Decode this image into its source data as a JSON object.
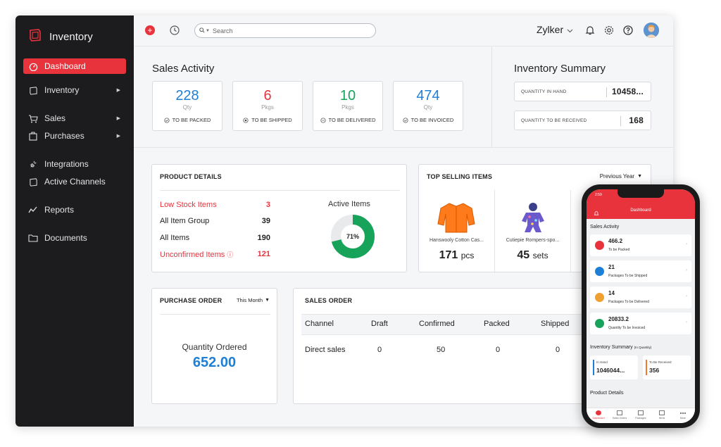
{
  "colors": {
    "accent": "#e8333d",
    "blue": "#1e7fd6",
    "green": "#17a35a",
    "sidebar": "#1c1c1e"
  },
  "sidebar": {
    "brand": "Inventory",
    "items": [
      {
        "label": "Dashboard",
        "icon": "dashboard-icon"
      },
      {
        "label": "Inventory",
        "icon": "inventory-icon"
      },
      {
        "label": "Sales",
        "icon": "cart-icon"
      },
      {
        "label": "Purchases",
        "icon": "bag-icon"
      },
      {
        "label": "Integrations",
        "icon": "plug-icon"
      },
      {
        "label": "Active Channels",
        "icon": "channels-icon"
      },
      {
        "label": "Reports",
        "icon": "reports-icon"
      },
      {
        "label": "Documents",
        "icon": "folder-icon"
      }
    ]
  },
  "header": {
    "search_placeholder": "Search",
    "org_name": "Zylker"
  },
  "sales_activity": {
    "title": "Sales Activity",
    "cards": [
      {
        "value": "228",
        "unit": "Qty",
        "label": "TO BE PACKED",
        "color": "#1e7fd6"
      },
      {
        "value": "6",
        "unit": "Pkgs",
        "label": "TO BE SHIPPED",
        "color": "#e8333d"
      },
      {
        "value": "10",
        "unit": "Pkgs",
        "label": "TO BE DELIVERED",
        "color": "#17a35a"
      },
      {
        "value": "474",
        "unit": "Qty",
        "label": "TO BE INVOICED",
        "color": "#1e7fd6"
      }
    ]
  },
  "inventory_summary": {
    "title": "Inventory Summary",
    "rows": [
      {
        "label": "QUANTITY IN HAND",
        "value": "10458..."
      },
      {
        "label": "QUANTITY TO BE RECEIVED",
        "value": "168"
      }
    ]
  },
  "product_details": {
    "title": "PRODUCT DETAILS",
    "rows": [
      {
        "label": "Low Stock Items",
        "value": "3"
      },
      {
        "label": "All Item Group",
        "value": "39"
      },
      {
        "label": "All Items",
        "value": "190"
      },
      {
        "label": "Unconfirmed Items",
        "value": "121"
      }
    ],
    "active_items_label": "Active Items",
    "active_percent_text": "71%",
    "active_fraction": 0.71
  },
  "top_selling": {
    "title": "TOP SELLING ITEMS",
    "period": "Previous Year",
    "items": [
      {
        "name": "Hanswooly Cotton Cas...",
        "qty": "171",
        "unit": "pcs"
      },
      {
        "name": "Cutiepie Rompers-spo...",
        "qty": "45",
        "unit": "sets"
      }
    ]
  },
  "purchase_order": {
    "title": "PURCHASE ORDER",
    "period": "This Month",
    "qty_label": "Quantity Ordered",
    "qty_value": "652.00"
  },
  "sales_order": {
    "title": "SALES ORDER",
    "columns": [
      "Channel",
      "Draft",
      "Confirmed",
      "Packed",
      "Shipped"
    ],
    "rows": [
      [
        "Direct sales",
        "0",
        "50",
        "0",
        "0"
      ]
    ]
  },
  "phone": {
    "time": "2:59",
    "title": "Dashboard",
    "sales_activity_title": "Sales Activity",
    "cards": [
      {
        "value": "466.2",
        "label": "To be Packed",
        "color": "#e8333d"
      },
      {
        "value": "21",
        "label": "Packages To be Shipped",
        "color": "#1e7fd6"
      },
      {
        "value": "14",
        "label": "Packages To be Delivered",
        "color": "#f0a030"
      },
      {
        "value": "20833.2",
        "label": "Quantity To be Invoiced",
        "color": "#17a35a"
      }
    ],
    "inventory_title": "Inventory Summary",
    "inventory_subtitle": "(In Quantity)",
    "in_hand_label": "In Hand",
    "in_hand_value": "1046044...",
    "to_receive_label": "To Be Received",
    "to_receive_value": "356",
    "product_details_title": "Product Details",
    "tabs": [
      "Dashboard",
      "Sales Orders",
      "Packages",
      "Items",
      "More"
    ]
  }
}
